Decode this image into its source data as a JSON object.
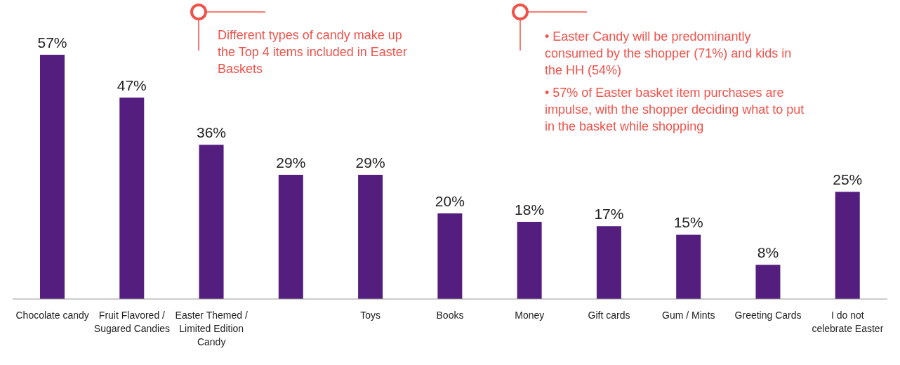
{
  "chart_data": {
    "type": "bar",
    "categories": [
      "Chocolate candy",
      "Fruit Flavored / Sugared Candies",
      "Easter Themed / Limited Edition Candy",
      null,
      "Toys",
      "Books",
      "Money",
      "Gift cards",
      "Gum / Mints",
      "Greeting Cards",
      "I do not celebrate Easter"
    ],
    "values": [
      57,
      47,
      36,
      29,
      29,
      20,
      18,
      17,
      15,
      8,
      25
    ],
    "value_labels": [
      "57%",
      "47%",
      "36%",
      "29%",
      "29%",
      "20%",
      "18%",
      "17%",
      "15%",
      "8%",
      "25%"
    ],
    "color": "#531e7e",
    "grid": false,
    "legend": false,
    "annotations": [
      "Different types of candy make up the Top 4 items included in Easter Baskets",
      "• Easter Candy will be predominantly consumed by the shopper (71%) and kids in the HH (54%)",
      "• 57% of Easter basket item purchases are impulse, with the shopper deciding what to put in the basket while shopping"
    ]
  }
}
